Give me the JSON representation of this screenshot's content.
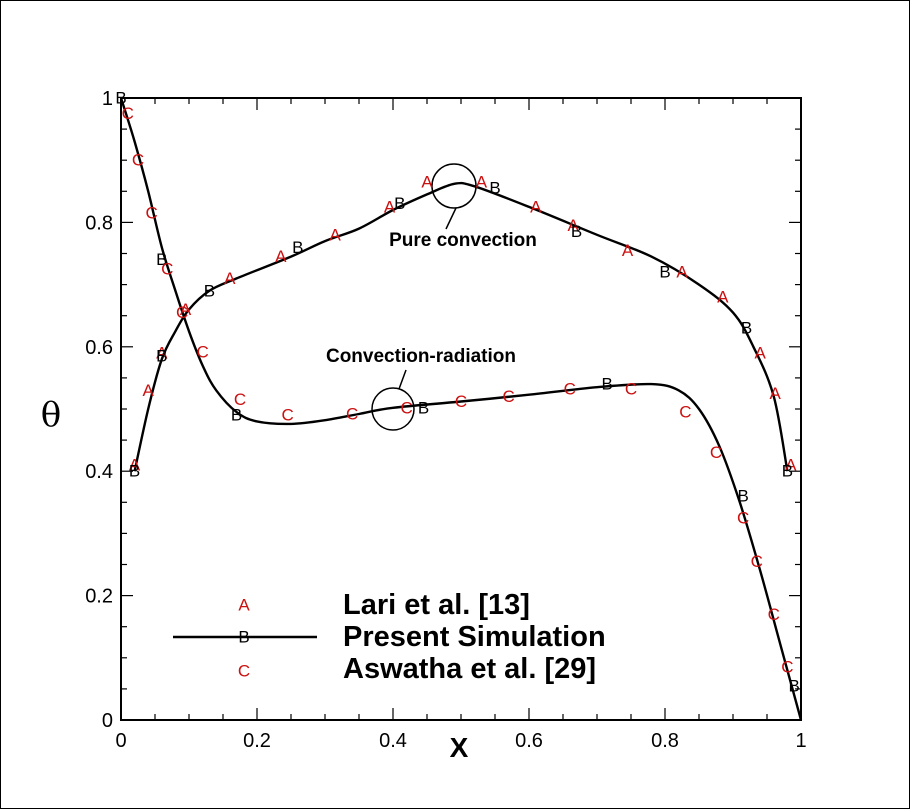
{
  "chart_data": {
    "type": "scatter",
    "xlabel": "X",
    "ylabel": "θ",
    "xlim": [
      0,
      1
    ],
    "ylim": [
      0,
      1
    ],
    "x_ticks": [
      "0",
      "0.2",
      "0.4",
      "0.6",
      "0.8",
      "1"
    ],
    "y_ticks": [
      "0",
      "0.2",
      "0.4",
      "0.6",
      "0.8",
      "1"
    ],
    "grid": false,
    "legend_placement": "bottom-left",
    "annotations": [
      "Pure convection",
      "Convection-radiation"
    ],
    "series": [
      {
        "name": "Lari et al. [13]",
        "symbol": "A",
        "color": "#cc1111",
        "style": "markers",
        "groups": {
          "pure_convection": [
            [
              0.02,
              0.41
            ],
            [
              0.04,
              0.53
            ],
            [
              0.06,
              0.59
            ],
            [
              0.095,
              0.66
            ],
            [
              0.16,
              0.71
            ],
            [
              0.235,
              0.745
            ],
            [
              0.315,
              0.78
            ],
            [
              0.395,
              0.825
            ],
            [
              0.45,
              0.865
            ],
            [
              0.53,
              0.865
            ],
            [
              0.61,
              0.825
            ],
            [
              0.665,
              0.795
            ],
            [
              0.745,
              0.755
            ],
            [
              0.825,
              0.72
            ],
            [
              0.885,
              0.68
            ],
            [
              0.94,
              0.59
            ],
            [
              0.962,
              0.525
            ],
            [
              0.985,
              0.41
            ]
          ]
        }
      },
      {
        "name": "Present Simulation",
        "symbol": "B",
        "color": "#000000",
        "style": "line+markers",
        "groups": {
          "pure_convection_curve": [
            [
              0.02,
              0.4
            ],
            [
              0.04,
              0.5
            ],
            [
              0.06,
              0.58
            ],
            [
              0.08,
              0.625
            ],
            [
              0.1,
              0.66
            ],
            [
              0.13,
              0.69
            ],
            [
              0.17,
              0.71
            ],
            [
              0.25,
              0.745
            ],
            [
              0.3,
              0.77
            ],
            [
              0.35,
              0.79
            ],
            [
              0.4,
              0.82
            ],
            [
              0.45,
              0.845
            ],
            [
              0.49,
              0.862
            ],
            [
              0.52,
              0.858
            ],
            [
              0.6,
              0.825
            ],
            [
              0.7,
              0.78
            ],
            [
              0.78,
              0.745
            ],
            [
              0.85,
              0.7
            ],
            [
              0.9,
              0.655
            ],
            [
              0.93,
              0.6
            ],
            [
              0.96,
              0.52
            ],
            [
              0.98,
              0.4
            ]
          ],
          "pure_convection_markers": [
            [
              0.02,
              0.4
            ],
            [
              0.06,
              0.585
            ],
            [
              0.13,
              0.69
            ],
            [
              0.26,
              0.76
            ],
            [
              0.41,
              0.83
            ],
            [
              0.55,
              0.855
            ],
            [
              0.67,
              0.785
            ],
            [
              0.8,
              0.72
            ],
            [
              0.92,
              0.63
            ],
            [
              0.98,
              0.4
            ]
          ],
          "convection_radiation_curve": [
            [
              0,
              1.0
            ],
            [
              0.02,
              0.93
            ],
            [
              0.04,
              0.85
            ],
            [
              0.06,
              0.76
            ],
            [
              0.08,
              0.69
            ],
            [
              0.1,
              0.625
            ],
            [
              0.12,
              0.57
            ],
            [
              0.14,
              0.53
            ],
            [
              0.17,
              0.495
            ],
            [
              0.2,
              0.48
            ],
            [
              0.25,
              0.476
            ],
            [
              0.3,
              0.482
            ],
            [
              0.35,
              0.492
            ],
            [
              0.4,
              0.502
            ],
            [
              0.5,
              0.512
            ],
            [
              0.6,
              0.523
            ],
            [
              0.7,
              0.535
            ],
            [
              0.78,
              0.54
            ],
            [
              0.82,
              0.53
            ],
            [
              0.85,
              0.5
            ],
            [
              0.88,
              0.44
            ],
            [
              0.91,
              0.35
            ],
            [
              0.94,
              0.24
            ],
            [
              0.97,
              0.12
            ],
            [
              1.0,
              0.0
            ]
          ],
          "convection_radiation_markers": [
            [
              0.0,
              1.0
            ],
            [
              0.06,
              0.74
            ],
            [
              0.17,
              0.49
            ],
            [
              0.445,
              0.502
            ],
            [
              0.715,
              0.54
            ],
            [
              0.915,
              0.36
            ],
            [
              0.99,
              0.055
            ]
          ]
        }
      },
      {
        "name": "Aswatha et al. [29]",
        "symbol": "C",
        "color": "#cc1111",
        "style": "markers",
        "groups": {
          "convection_radiation": [
            [
              0.01,
              0.975
            ],
            [
              0.025,
              0.9
            ],
            [
              0.045,
              0.815
            ],
            [
              0.068,
              0.725
            ],
            [
              0.09,
              0.655
            ],
            [
              0.12,
              0.592
            ],
            [
              0.175,
              0.515
            ],
            [
              0.245,
              0.49
            ],
            [
              0.34,
              0.492
            ],
            [
              0.42,
              0.502
            ],
            [
              0.5,
              0.512
            ],
            [
              0.57,
              0.52
            ],
            [
              0.66,
              0.532
            ],
            [
              0.75,
              0.532
            ],
            [
              0.83,
              0.495
            ],
            [
              0.875,
              0.43
            ],
            [
              0.915,
              0.325
            ],
            [
              0.935,
              0.255
            ],
            [
              0.96,
              0.17
            ],
            [
              0.98,
              0.085
            ]
          ]
        }
      }
    ]
  }
}
